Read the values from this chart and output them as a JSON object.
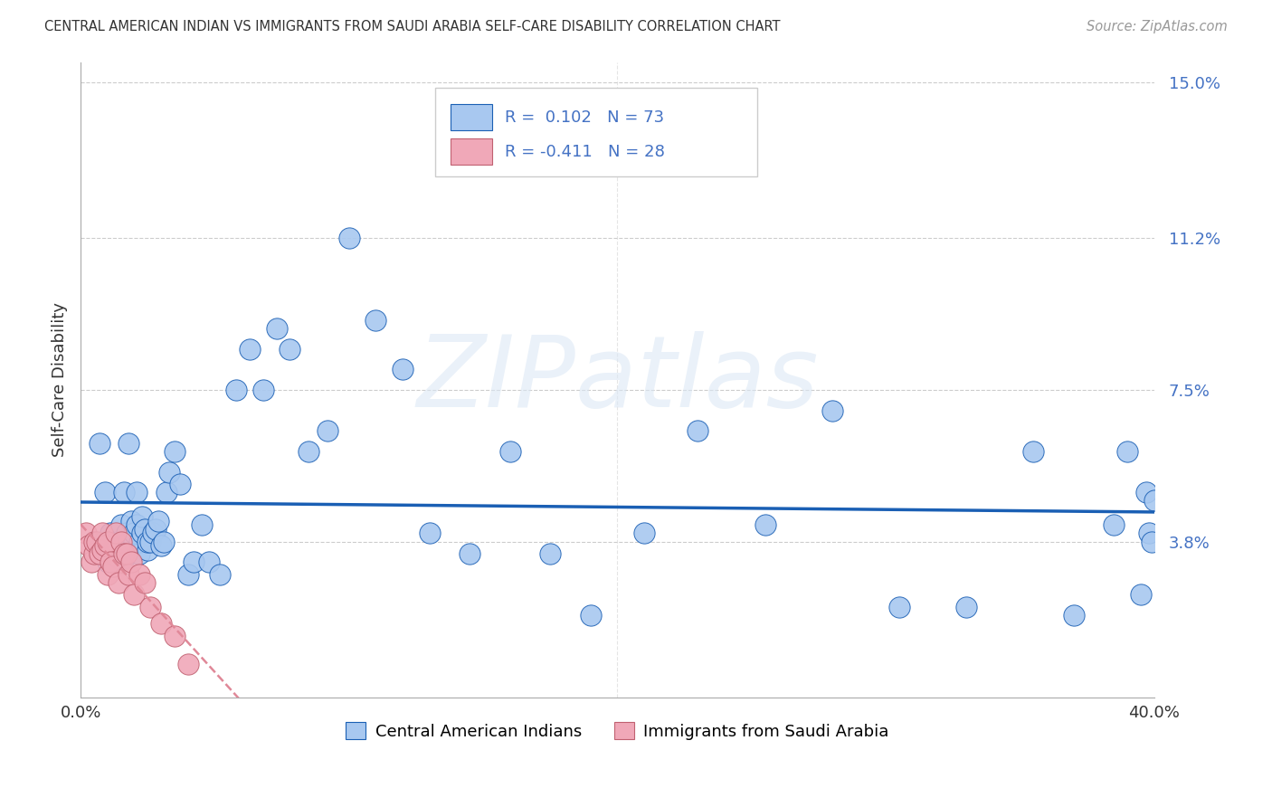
{
  "title": "CENTRAL AMERICAN INDIAN VS IMMIGRANTS FROM SAUDI ARABIA SELF-CARE DISABILITY CORRELATION CHART",
  "source": "Source: ZipAtlas.com",
  "ylabel": "Self-Care Disability",
  "xlim": [
    0.0,
    0.4
  ],
  "ylim": [
    0.0,
    0.155
  ],
  "ytick_labels": [
    "3.8%",
    "7.5%",
    "11.2%",
    "15.0%"
  ],
  "ytick_values": [
    0.038,
    0.075,
    0.112,
    0.15
  ],
  "xtick_labels": [
    "0.0%",
    "40.0%"
  ],
  "xtick_values": [
    0.0,
    0.4
  ],
  "R_blue": 0.102,
  "N_blue": 73,
  "R_pink": -0.411,
  "N_pink": 28,
  "blue_color": "#a8c8f0",
  "pink_color": "#f0a8b8",
  "line_blue": "#1a5fb4",
  "line_pink": "#e08898",
  "watermark": "ZIPatlas",
  "legend_label_blue": "Central American Indians",
  "legend_label_pink": "Immigrants from Saudi Arabia",
  "blue_points_x": [
    0.005,
    0.007,
    0.008,
    0.009,
    0.01,
    0.011,
    0.012,
    0.013,
    0.014,
    0.015,
    0.015,
    0.016,
    0.016,
    0.017,
    0.018,
    0.018,
    0.019,
    0.02,
    0.02,
    0.021,
    0.021,
    0.022,
    0.022,
    0.023,
    0.023,
    0.024,
    0.025,
    0.025,
    0.026,
    0.027,
    0.028,
    0.029,
    0.03,
    0.031,
    0.032,
    0.033,
    0.035,
    0.037,
    0.04,
    0.042,
    0.045,
    0.048,
    0.052,
    0.058,
    0.063,
    0.068,
    0.073,
    0.078,
    0.085,
    0.092,
    0.1,
    0.11,
    0.12,
    0.13,
    0.145,
    0.16,
    0.175,
    0.19,
    0.21,
    0.23,
    0.255,
    0.28,
    0.305,
    0.33,
    0.355,
    0.37,
    0.385,
    0.39,
    0.395,
    0.397,
    0.398,
    0.399,
    0.4
  ],
  "blue_points_y": [
    0.038,
    0.062,
    0.036,
    0.05,
    0.033,
    0.04,
    0.035,
    0.038,
    0.034,
    0.037,
    0.042,
    0.034,
    0.05,
    0.04,
    0.062,
    0.038,
    0.043,
    0.038,
    0.04,
    0.042,
    0.05,
    0.035,
    0.038,
    0.04,
    0.044,
    0.041,
    0.036,
    0.038,
    0.038,
    0.04,
    0.041,
    0.043,
    0.037,
    0.038,
    0.05,
    0.055,
    0.06,
    0.052,
    0.03,
    0.033,
    0.042,
    0.033,
    0.03,
    0.075,
    0.085,
    0.075,
    0.09,
    0.085,
    0.06,
    0.065,
    0.112,
    0.092,
    0.08,
    0.04,
    0.035,
    0.06,
    0.035,
    0.02,
    0.04,
    0.065,
    0.042,
    0.07,
    0.022,
    0.022,
    0.06,
    0.02,
    0.042,
    0.06,
    0.025,
    0.05,
    0.04,
    0.038,
    0.048
  ],
  "pink_points_x": [
    0.002,
    0.003,
    0.004,
    0.005,
    0.005,
    0.006,
    0.007,
    0.008,
    0.008,
    0.009,
    0.01,
    0.01,
    0.011,
    0.012,
    0.013,
    0.014,
    0.015,
    0.016,
    0.017,
    0.018,
    0.019,
    0.02,
    0.022,
    0.024,
    0.026,
    0.03,
    0.035,
    0.04
  ],
  "pink_points_y": [
    0.04,
    0.037,
    0.033,
    0.035,
    0.038,
    0.038,
    0.035,
    0.036,
    0.04,
    0.037,
    0.038,
    0.03,
    0.033,
    0.032,
    0.04,
    0.028,
    0.038,
    0.035,
    0.035,
    0.03,
    0.033,
    0.025,
    0.03,
    0.028,
    0.022,
    0.018,
    0.015,
    0.008
  ],
  "pink_line_xmax": 0.15
}
